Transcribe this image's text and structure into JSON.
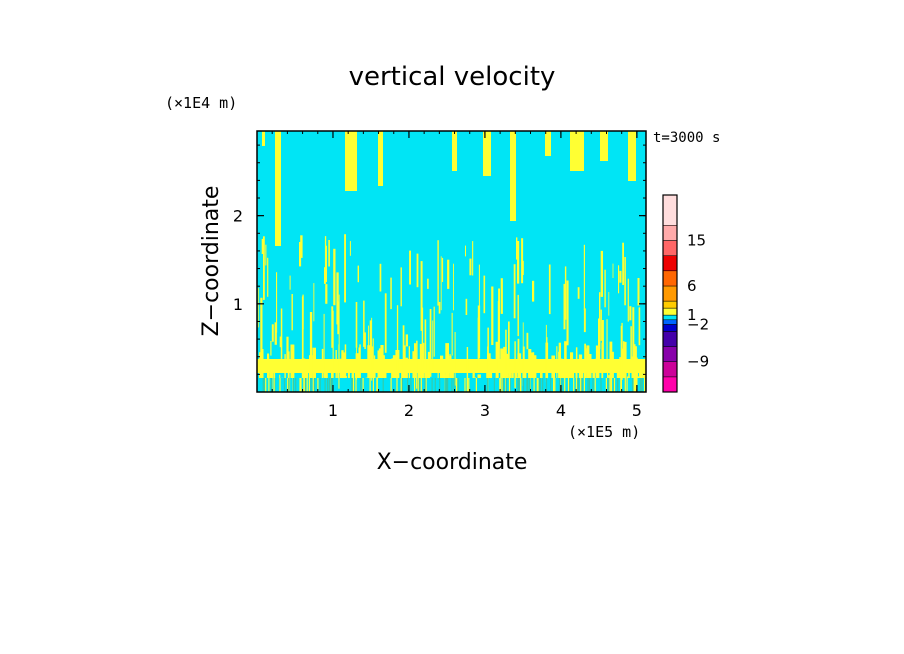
{
  "chart_data": {
    "type": "heatmap",
    "title": "vertical velocity",
    "xlabel": "X−coordinate",
    "ylabel": "Z−coordinate",
    "x_unit": "(×1E5 m)",
    "y_unit": "(×1E4 m)",
    "time_label": "t=3000 s",
    "xlim": [
      0,
      5.12
    ],
    "ylim": [
      0,
      2.96
    ],
    "x_ticks": [
      1,
      2,
      3,
      4,
      5
    ],
    "y_ticks": [
      1,
      2
    ],
    "x_tick_labels": [
      "1",
      "2",
      "3",
      "4",
      "5"
    ],
    "y_tick_labels": [
      "1",
      "2"
    ],
    "background_color": "#00e5f5",
    "updraft_color": "#ffff33",
    "colorbar": {
      "colors": [
        "#ff00aa",
        "#cc0099",
        "#8800aa",
        "#4400aa",
        "#0000cc",
        "#0066ff",
        "#00e5f5",
        "#ffff33",
        "#ffcc00",
        "#ff9900",
        "#ff6600",
        "#ee0000",
        "#ff6666",
        "#ffaaaa",
        "#ffdddd"
      ],
      "labels": [
        {
          "text": "15",
          "index": 13
        },
        {
          "text": "6",
          "index": 10
        },
        {
          "text": "1",
          "index": 7
        },
        {
          "text": "−2",
          "index": 5
        },
        {
          "text": "−9",
          "index": 2
        }
      ]
    }
  }
}
